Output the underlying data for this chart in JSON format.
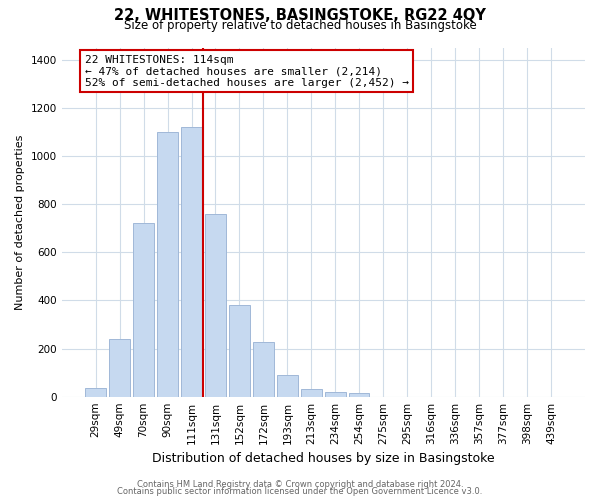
{
  "title": "22, WHITESTONES, BASINGSTOKE, RG22 4QY",
  "subtitle": "Size of property relative to detached houses in Basingstoke",
  "xlabel": "Distribution of detached houses by size in Basingstoke",
  "ylabel": "Number of detached properties",
  "bar_labels": [
    "29sqm",
    "49sqm",
    "70sqm",
    "90sqm",
    "111sqm",
    "131sqm",
    "152sqm",
    "172sqm",
    "193sqm",
    "213sqm",
    "234sqm",
    "254sqm",
    "275sqm",
    "295sqm",
    "316sqm",
    "336sqm",
    "357sqm",
    "377sqm",
    "398sqm",
    "439sqm"
  ],
  "bar_values": [
    35,
    240,
    720,
    1100,
    1120,
    760,
    380,
    228,
    90,
    30,
    20,
    15,
    0,
    0,
    0,
    0,
    0,
    0,
    0,
    0
  ],
  "bar_color": "#c6d9f0",
  "bar_edge_color": "#a0b8d8",
  "vline_color": "#cc0000",
  "annotation_line1": "22 WHITESTONES: 114sqm",
  "annotation_line2": "← 47% of detached houses are smaller (2,214)",
  "annotation_line3": "52% of semi-detached houses are larger (2,452) →",
  "annotation_box_edge": "#cc0000",
  "annotation_box_face": "#ffffff",
  "ylim": [
    0,
    1450
  ],
  "yticks": [
    0,
    200,
    400,
    600,
    800,
    1000,
    1200,
    1400
  ],
  "footer1": "Contains HM Land Registry data © Crown copyright and database right 2024.",
  "footer2": "Contains public sector information licensed under the Open Government Licence v3.0.",
  "bg_color": "#ffffff",
  "grid_color": "#d0dce8",
  "title_fontsize": 10.5,
  "subtitle_fontsize": 8.5,
  "ylabel_fontsize": 8,
  "xlabel_fontsize": 9,
  "tick_fontsize": 7.5,
  "ann_fontsize": 8,
  "footer_fontsize": 6
}
